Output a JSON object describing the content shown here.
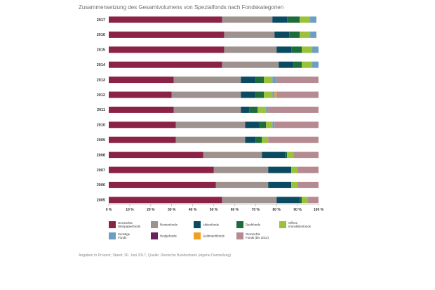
{
  "chart_data": {
    "type": "bar",
    "stacked": true,
    "orientation": "horizontal",
    "title": "Zusammensetzung des Gesamtvolumens von Spezialfonds nach Fondskategorien",
    "categories": [
      "2017",
      "2016",
      "2015",
      "2014",
      "2013",
      "2012",
      "2011",
      "2010",
      "2009",
      "2008",
      "2007",
      "2006",
      "2005"
    ],
    "xlim": [
      0,
      100
    ],
    "xticks": [
      "0 %",
      "10 %",
      "20 %",
      "30 %",
      "40 %",
      "50 %",
      "60 %",
      "70 %",
      "80 %",
      "90 %",
      "100 %"
    ],
    "legend_position": "bottom",
    "series": [
      {
        "name": "Gemischte Wertpapierfonds",
        "color": "#8b2346",
        "values": [
          54,
          55,
          55,
          54,
          31,
          30,
          31,
          32,
          32,
          45,
          50,
          51,
          54
        ]
      },
      {
        "name": "Rentenfonds",
        "color": "#9e928e",
        "values": [
          24,
          24,
          25,
          27,
          32,
          33,
          32,
          33,
          33,
          28,
          26,
          25,
          26
        ]
      },
      {
        "name": "Aktienfonds",
        "color": "#0b4b62",
        "values": [
          7,
          7,
          7,
          7,
          7,
          7,
          4,
          7,
          5,
          11,
          11,
          11,
          11
        ]
      },
      {
        "name": "Dachfonds",
        "color": "#1e6b3c",
        "values": [
          6,
          5,
          5,
          4,
          4,
          4,
          4,
          3,
          3,
          1,
          0,
          0,
          1
        ]
      },
      {
        "name": "Offene Immobilienfonds",
        "color": "#9bc23a",
        "values": [
          5,
          5,
          5,
          5,
          4,
          4,
          4,
          3,
          3,
          3,
          3,
          3,
          3
        ]
      },
      {
        "name": "Sonstige Fonds",
        "color": "#6e9ec2",
        "values": [
          3,
          3,
          3,
          3,
          2,
          1,
          1,
          1,
          0,
          0,
          0,
          0,
          0
        ]
      },
      {
        "name": "Hedgefonds",
        "color": "#6b1f5f",
        "values": [
          0,
          0,
          0,
          0,
          0,
          0,
          0,
          0,
          0,
          0,
          0,
          0,
          0
        ]
      },
      {
        "name": "Geldmarktfonds",
        "color": "#f0a020",
        "values": [
          0,
          0,
          0,
          0,
          0,
          1,
          0,
          0,
          0,
          0,
          0,
          0,
          0
        ]
      },
      {
        "name": "Gemischte Fonds (bis 2012)",
        "color": "#b58a90",
        "values": [
          0,
          0,
          0,
          0,
          20,
          20,
          24,
          21,
          24,
          12,
          10,
          10,
          5
        ]
      }
    ]
  },
  "source_note": "Angaben in Prozent, Stand: 30. Juni 2017, Quelle: Deutsche Bundesbank (eigene Darstellung)"
}
